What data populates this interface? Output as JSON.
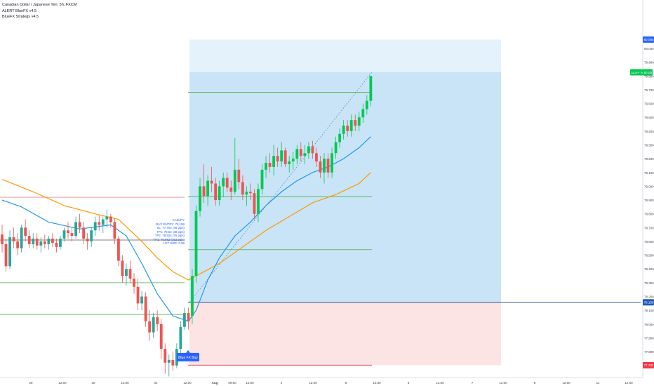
{
  "header": {
    "symbol_title": "Canadian Dollar / Japanese Yen, 5h, FXCM",
    "indicators": [
      "ALERT BlueFX v4.5",
      "BlueFX Strategy v4.5"
    ]
  },
  "trade_info": {
    "lines": [
      "CADJPY",
      "BUY ENTRY: 78.159",
      "SL: 77.702 (46 pips)",
      "TP1: 78.54 (38 pips)",
      "TP2: 78.924 (76 pips)",
      "TP3: 79.682 (152 pips)",
      "LOT SIZE: 0.89"
    ]
  },
  "buy_label": "Blue FX Buy",
  "price_badges": {
    "top": "80.064",
    "symbol_price": "CADJPY  79.827",
    "current": "80.00",
    "entry": "78.158",
    "stop": "77.702"
  },
  "colors": {
    "up": "#26a69a",
    "up_bright": "#00c853",
    "down": "#ef5350",
    "ma_fast": "#2196f3",
    "ma_slow": "#ff9800",
    "profit_zone": "#c8e4f6",
    "profit_zone_light": "#e4f2fb",
    "loss_zone": "#fde4e4",
    "level_green": "#4caf50",
    "level_red": "#ef9a9a",
    "badge_blue": "#2962ff",
    "badge_red": "#f23645",
    "badge_green": "#00c853"
  },
  "chart_data": {
    "type": "candlestick",
    "title": "Canadian Dollar / Japanese Yen, 5h, FXCM",
    "y_range": [
      77.35,
      80.1
    ],
    "y_ticks": [
      "80.000",
      "79.900",
      "79.800",
      "79.700",
      "79.600",
      "79.500",
      "79.400",
      "79.300",
      "79.200",
      "79.100",
      "79.000",
      "78.900",
      "78.800",
      "78.700",
      "78.600",
      "78.500",
      "78.400",
      "78.300",
      "78.200",
      "78.100",
      "78.000",
      "77.900",
      "77.800",
      "77.700",
      "77.600",
      "77.500",
      "77.400"
    ],
    "x_ticks": [
      "29",
      "12:00",
      "30",
      "12:00",
      "31",
      "12:00",
      "Aug",
      "09:00",
      "12:00",
      "4",
      "12:00",
      "5",
      "12:00",
      "6",
      "12:00",
      "7",
      "12:00",
      "8",
      "12:00",
      "11",
      "12:00"
    ],
    "candles": [
      [
        78.65,
        78.72,
        78.52,
        78.58
      ],
      [
        78.58,
        78.62,
        78.38,
        78.42
      ],
      [
        78.42,
        78.68,
        78.4,
        78.63
      ],
      [
        78.63,
        78.7,
        78.55,
        78.6
      ],
      [
        78.6,
        78.66,
        78.5,
        78.55
      ],
      [
        78.55,
        78.72,
        78.52,
        78.7
      ],
      [
        78.7,
        78.76,
        78.6,
        78.64
      ],
      [
        78.64,
        78.68,
        78.55,
        78.58
      ],
      [
        78.58,
        78.66,
        78.55,
        78.62
      ],
      [
        78.62,
        78.66,
        78.54,
        78.57
      ],
      [
        78.57,
        78.63,
        78.52,
        78.6
      ],
      [
        78.6,
        78.65,
        78.55,
        78.58
      ],
      [
        78.58,
        78.64,
        78.54,
        78.62
      ],
      [
        78.62,
        78.66,
        78.56,
        78.59
      ],
      [
        78.59,
        78.62,
        78.52,
        78.56
      ],
      [
        78.56,
        78.64,
        78.54,
        78.62
      ],
      [
        78.62,
        78.7,
        78.6,
        78.68
      ],
      [
        78.68,
        78.74,
        78.62,
        78.66
      ],
      [
        78.66,
        78.7,
        78.6,
        78.64
      ],
      [
        78.64,
        78.78,
        78.62,
        78.74
      ],
      [
        78.74,
        78.8,
        78.66,
        78.7
      ],
      [
        78.7,
        78.74,
        78.58,
        78.62
      ],
      [
        78.62,
        78.66,
        78.54,
        78.6
      ],
      [
        78.6,
        78.7,
        78.56,
        78.68
      ],
      [
        78.68,
        78.78,
        78.64,
        78.74
      ],
      [
        78.74,
        78.79,
        78.68,
        78.72
      ],
      [
        78.72,
        78.78,
        78.66,
        78.76
      ],
      [
        78.76,
        78.83,
        78.7,
        78.78
      ],
      [
        78.78,
        78.8,
        78.7,
        78.74
      ],
      [
        78.74,
        78.77,
        78.58,
        78.62
      ],
      [
        78.62,
        78.64,
        78.42,
        78.46
      ],
      [
        78.46,
        78.5,
        78.3,
        78.35
      ],
      [
        78.35,
        78.44,
        78.28,
        78.4
      ],
      [
        78.4,
        78.46,
        78.3,
        78.33
      ],
      [
        78.33,
        78.37,
        78.22,
        78.27
      ],
      [
        78.27,
        78.33,
        78.1,
        78.15
      ],
      [
        78.15,
        78.24,
        78.1,
        78.2
      ],
      [
        78.2,
        78.23,
        77.98,
        78.02
      ],
      [
        78.02,
        78.1,
        77.88,
        77.94
      ],
      [
        77.94,
        78.08,
        77.9,
        78.05
      ],
      [
        78.05,
        78.1,
        77.95,
        78.0
      ],
      [
        78.0,
        78.04,
        77.75,
        77.82
      ],
      [
        77.82,
        77.86,
        77.64,
        77.72
      ],
      [
        77.72,
        77.78,
        77.62,
        77.74
      ],
      [
        77.74,
        77.8,
        77.66,
        77.7
      ],
      [
        77.7,
        77.86,
        77.68,
        77.82
      ],
      [
        77.82,
        78.02,
        77.78,
        77.98
      ],
      [
        77.98,
        78.12,
        77.96,
        78.08
      ],
      [
        78.08,
        78.12,
        77.96,
        78.02
      ],
      [
        78.06,
        78.4,
        78.0,
        78.35
      ],
      [
        78.35,
        78.86,
        78.3,
        78.82
      ],
      [
        78.82,
        79.06,
        78.78,
        79.0
      ],
      [
        79.0,
        79.16,
        78.88,
        78.93
      ],
      [
        78.93,
        79.08,
        78.86,
        79.04
      ],
      [
        79.04,
        79.14,
        78.96,
        79.02
      ],
      [
        79.02,
        79.06,
        78.86,
        78.9
      ],
      [
        78.9,
        79.04,
        78.86,
        79.0
      ],
      [
        79.0,
        79.1,
        78.92,
        79.06
      ],
      [
        79.06,
        79.1,
        78.96,
        78.99
      ],
      [
        78.99,
        79.04,
        78.9,
        78.96
      ],
      [
        78.96,
        79.35,
        78.94,
        79.12
      ],
      [
        79.12,
        79.2,
        78.98,
        79.03
      ],
      [
        79.03,
        79.08,
        78.9,
        78.94
      ],
      [
        78.94,
        79.0,
        78.86,
        78.96
      ],
      [
        78.96,
        79.02,
        78.9,
        78.95
      ],
      [
        78.95,
        78.98,
        78.76,
        78.8
      ],
      [
        78.8,
        79.02,
        78.74,
        78.98
      ],
      [
        78.98,
        79.16,
        78.94,
        79.12
      ],
      [
        79.12,
        79.22,
        79.06,
        79.17
      ],
      [
        79.17,
        79.24,
        79.1,
        79.14
      ],
      [
        79.14,
        79.3,
        79.08,
        79.22
      ],
      [
        79.22,
        79.28,
        79.14,
        79.18
      ],
      [
        79.18,
        79.32,
        79.14,
        79.26
      ],
      [
        79.26,
        79.28,
        79.14,
        79.16
      ],
      [
        79.16,
        79.22,
        79.1,
        79.18
      ],
      [
        79.18,
        79.25,
        79.12,
        79.2
      ],
      [
        79.2,
        79.3,
        79.16,
        79.27
      ],
      [
        79.27,
        79.32,
        79.18,
        79.22
      ],
      [
        79.22,
        79.3,
        79.16,
        79.24
      ],
      [
        79.24,
        79.32,
        79.2,
        79.29
      ],
      [
        79.29,
        79.33,
        79.2,
        79.24
      ],
      [
        79.24,
        79.28,
        79.14,
        79.18
      ],
      [
        79.18,
        79.22,
        79.06,
        79.1
      ],
      [
        79.1,
        79.24,
        79.02,
        79.2
      ],
      [
        79.2,
        79.24,
        79.06,
        79.1
      ],
      [
        79.1,
        79.28,
        79.06,
        79.24
      ],
      [
        79.24,
        79.36,
        79.2,
        79.32
      ],
      [
        79.32,
        79.42,
        79.28,
        79.38
      ],
      [
        79.38,
        79.48,
        79.34,
        79.44
      ],
      [
        79.44,
        79.48,
        79.36,
        79.4
      ],
      [
        79.4,
        79.52,
        79.36,
        79.48
      ],
      [
        79.48,
        79.52,
        79.4,
        79.44
      ],
      [
        79.44,
        79.54,
        79.4,
        79.5
      ],
      [
        79.5,
        79.6,
        79.46,
        79.56
      ],
      [
        79.56,
        79.66,
        79.52,
        79.62
      ],
      [
        79.62,
        79.8,
        79.58,
        79.8
      ]
    ],
    "ma_fast": [
      [
        0,
        78.9
      ],
      [
        5,
        78.85
      ],
      [
        12,
        78.74
      ],
      [
        20,
        78.69
      ],
      [
        28,
        78.72
      ],
      [
        32,
        78.64
      ],
      [
        36,
        78.44
      ],
      [
        40,
        78.22
      ],
      [
        44,
        78.06
      ],
      [
        48,
        78.02
      ],
      [
        50,
        78.1
      ],
      [
        53,
        78.32
      ],
      [
        56,
        78.48
      ],
      [
        60,
        78.64
      ],
      [
        64,
        78.74
      ],
      [
        68,
        78.86
      ],
      [
        72,
        78.96
      ],
      [
        76,
        79.04
      ],
      [
        80,
        79.1
      ],
      [
        84,
        79.14
      ],
      [
        88,
        79.2
      ],
      [
        92,
        79.28
      ],
      [
        95,
        79.36
      ]
    ],
    "ma_slow": [
      [
        0,
        79.05
      ],
      [
        8,
        78.96
      ],
      [
        16,
        78.86
      ],
      [
        24,
        78.8
      ],
      [
        30,
        78.76
      ],
      [
        36,
        78.6
      ],
      [
        40,
        78.48
      ],
      [
        44,
        78.38
      ],
      [
        48,
        78.32
      ],
      [
        52,
        78.38
      ],
      [
        56,
        78.44
      ],
      [
        62,
        78.56
      ],
      [
        68,
        78.68
      ],
      [
        74,
        78.78
      ],
      [
        80,
        78.88
      ],
      [
        86,
        78.94
      ],
      [
        92,
        79.02
      ],
      [
        95,
        79.1
      ]
    ],
    "levels": {
      "red_top": 78.92,
      "green_left_1": 78.3,
      "green_left_2": 78.07,
      "green_left_3": 77.49,
      "gray": 78.61,
      "entry": 78.158,
      "stop": 77.702,
      "tp1": 78.54,
      "tp2": 78.924,
      "tp3": 79.682
    },
    "zones": {
      "profit_light_top": 80.064,
      "profit_top": 79.827,
      "entry": 78.158,
      "stop": 77.702
    },
    "grid": false,
    "legend": "top-left"
  }
}
